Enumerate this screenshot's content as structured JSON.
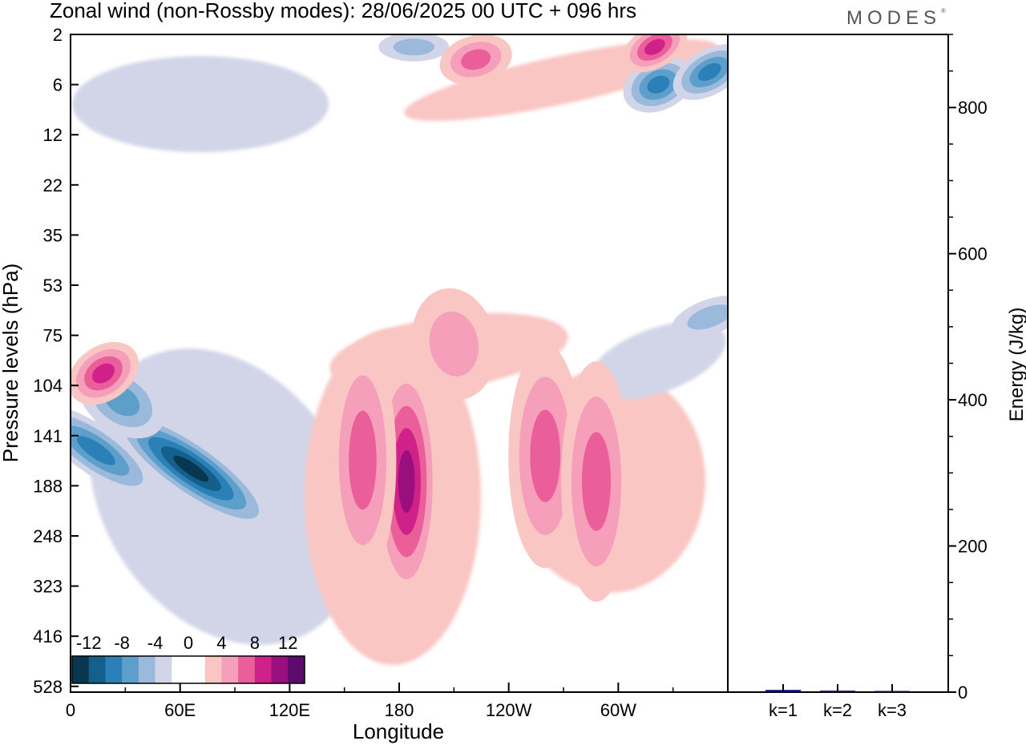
{
  "header": {
    "title": "Zonal wind (non-Rossby modes):  28/06/2025  00 UTC  + 096 hrs",
    "logo": "MODES"
  },
  "chart_data": [
    {
      "type": "heatmap",
      "title": "Zonal wind (non-Rossby modes):  28/06/2025  00 UTC  + 096 hrs",
      "xlabel": "Longitude",
      "ylabel": "Pressure levels (hPa)",
      "x_ticks": [
        "0",
        "60E",
        "120E",
        "180",
        "120W",
        "60W"
      ],
      "x_tick_degrees": [
        0,
        60,
        120,
        180,
        240,
        300
      ],
      "xlim": [
        0,
        360
      ],
      "y_ticks": [
        "2",
        "6",
        "12",
        "22",
        "35",
        "53",
        "75",
        "104",
        "141",
        "188",
        "248",
        "323",
        "416",
        "528"
      ],
      "colorbar": {
        "labels": [
          "-12",
          "-8",
          "-4",
          "0",
          "4",
          "8",
          "12"
        ],
        "colors": [
          "#08374f",
          "#155f8d",
          "#2a80b7",
          "#5d9fcb",
          "#9bbadb",
          "#d2d5e8",
          "#ffffff",
          "#ffffff",
          "#f9c6c3",
          "#f59fba",
          "#ea5f9a",
          "#cf2187",
          "#9a0f7e",
          "#5b0b6b"
        ]
      },
      "features": [
        {
          "sign": "negative",
          "peak": -14,
          "lon": 66,
          "level": 172
        },
        {
          "sign": "negative",
          "peak": -9,
          "lon": 14,
          "level": 155
        },
        {
          "sign": "negative",
          "peak": -8,
          "lon": 28,
          "level": 115
        },
        {
          "sign": "negative",
          "peak": -9,
          "lon": 322,
          "level": 6
        },
        {
          "sign": "negative",
          "peak": -9,
          "lon": 350,
          "level": 5
        },
        {
          "sign": "negative",
          "peak": -6,
          "lon": 188,
          "level": 3
        },
        {
          "sign": "negative",
          "peak": -6,
          "lon": 350,
          "level": 67
        },
        {
          "sign": "positive",
          "peak": 11,
          "lon": 184,
          "level": 184
        },
        {
          "sign": "positive",
          "peak": 8,
          "lon": 160,
          "level": 164
        },
        {
          "sign": "positive",
          "peak": 8,
          "lon": 260,
          "level": 160
        },
        {
          "sign": "positive",
          "peak": 8,
          "lon": 288,
          "level": 184
        },
        {
          "sign": "positive",
          "peak": 10,
          "lon": 18,
          "level": 97
        },
        {
          "sign": "positive",
          "peak": 9,
          "lon": 320,
          "level": 3
        },
        {
          "sign": "positive",
          "peak": 8,
          "lon": 222,
          "level": 4
        },
        {
          "sign": "positive",
          "peak": 6,
          "lon": 210,
          "level": 80
        }
      ]
    },
    {
      "type": "bar",
      "categories": [
        "k=1",
        "k=2",
        "k=3"
      ],
      "values": [
        3,
        2,
        1
      ],
      "ylabel": "Energy (J/kg)",
      "ylim": [
        0,
        900
      ],
      "y_ticks": [
        0,
        200,
        400,
        600,
        800
      ],
      "bar_color": "#0a0a80"
    }
  ]
}
